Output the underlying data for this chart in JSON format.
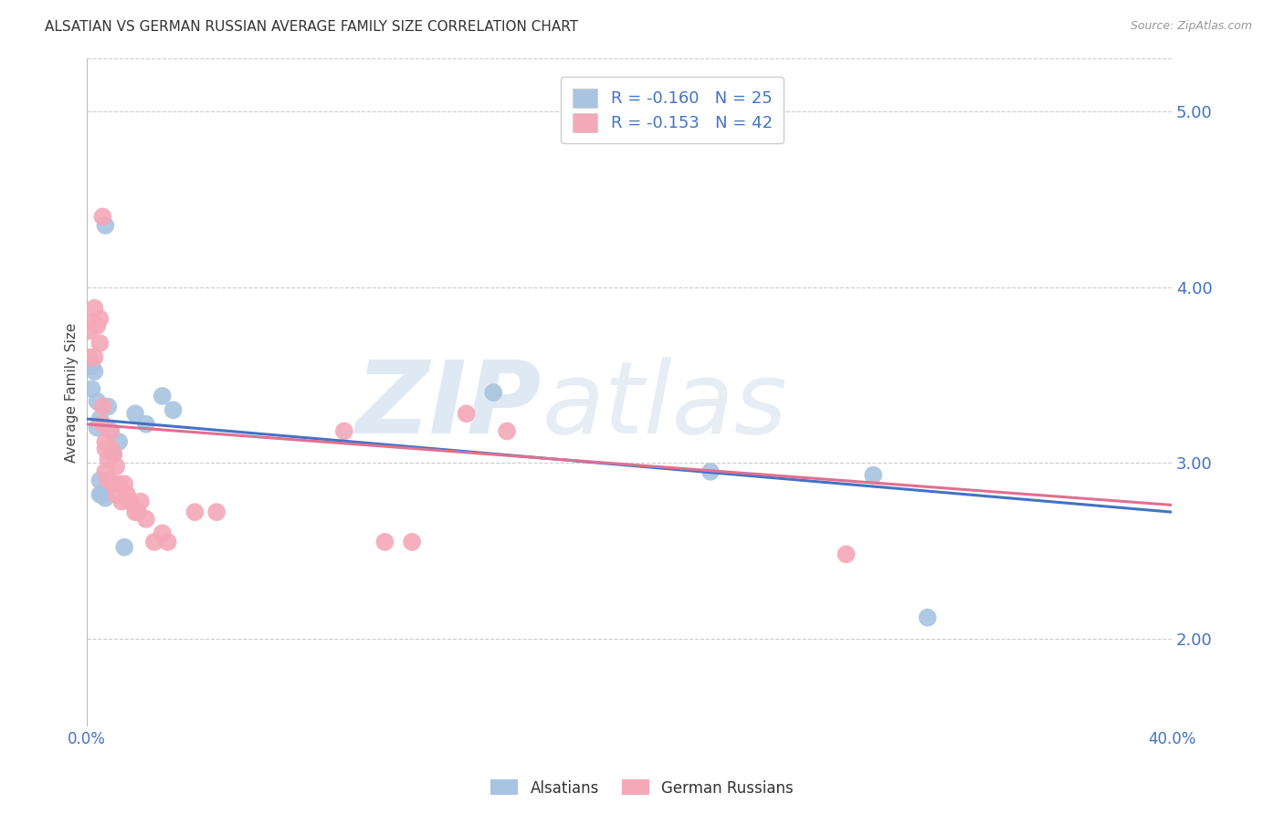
{
  "title": "ALSATIAN VS GERMAN RUSSIAN AVERAGE FAMILY SIZE CORRELATION CHART",
  "source": "Source: ZipAtlas.com",
  "ylabel": "Average Family Size",
  "watermark": "ZIPatlas",
  "right_yticks": [
    2.0,
    3.0,
    4.0,
    5.0
  ],
  "xmin": 0.0,
  "xmax": 0.4,
  "ymin": 1.5,
  "ymax": 5.3,
  "alsatian_color": "#a8c4e0",
  "german_russian_color": "#f4a8b8",
  "alsatian_line_color": "#4472c4",
  "german_russian_line_color": "#e07090",
  "legend_text_color": "#4472c4",
  "alsatian_R": -0.16,
  "alsatian_N": 25,
  "german_russian_R": -0.153,
  "german_russian_N": 42,
  "alsatian_points": [
    [
      0.001,
      3.55
    ],
    [
      0.002,
      3.42
    ],
    [
      0.002,
      3.55
    ],
    [
      0.003,
      3.52
    ],
    [
      0.004,
      3.35
    ],
    [
      0.004,
      3.2
    ],
    [
      0.005,
      3.25
    ],
    [
      0.005,
      2.9
    ],
    [
      0.005,
      2.82
    ],
    [
      0.006,
      2.82
    ],
    [
      0.007,
      2.8
    ],
    [
      0.007,
      4.35
    ],
    [
      0.008,
      3.32
    ],
    [
      0.009,
      3.18
    ],
    [
      0.01,
      3.05
    ],
    [
      0.012,
      3.12
    ],
    [
      0.014,
      2.52
    ],
    [
      0.018,
      3.28
    ],
    [
      0.022,
      3.22
    ],
    [
      0.028,
      3.38
    ],
    [
      0.032,
      3.3
    ],
    [
      0.15,
      3.4
    ],
    [
      0.23,
      2.95
    ],
    [
      0.29,
      2.93
    ],
    [
      0.31,
      2.12
    ]
  ],
  "german_russian_points": [
    [
      0.001,
      3.6
    ],
    [
      0.001,
      3.75
    ],
    [
      0.002,
      3.8
    ],
    [
      0.003,
      3.6
    ],
    [
      0.003,
      3.88
    ],
    [
      0.004,
      3.78
    ],
    [
      0.005,
      3.68
    ],
    [
      0.005,
      3.82
    ],
    [
      0.006,
      4.4
    ],
    [
      0.006,
      3.32
    ],
    [
      0.006,
      3.22
    ],
    [
      0.007,
      3.12
    ],
    [
      0.007,
      3.08
    ],
    [
      0.007,
      2.95
    ],
    [
      0.008,
      2.9
    ],
    [
      0.008,
      3.02
    ],
    [
      0.009,
      3.18
    ],
    [
      0.009,
      3.08
    ],
    [
      0.01,
      3.05
    ],
    [
      0.01,
      2.88
    ],
    [
      0.011,
      2.98
    ],
    [
      0.011,
      2.82
    ],
    [
      0.012,
      2.88
    ],
    [
      0.013,
      2.78
    ],
    [
      0.014,
      2.88
    ],
    [
      0.015,
      2.82
    ],
    [
      0.016,
      2.78
    ],
    [
      0.018,
      2.72
    ],
    [
      0.019,
      2.72
    ],
    [
      0.02,
      2.78
    ],
    [
      0.022,
      2.68
    ],
    [
      0.025,
      2.55
    ],
    [
      0.028,
      2.6
    ],
    [
      0.03,
      2.55
    ],
    [
      0.04,
      2.72
    ],
    [
      0.048,
      2.72
    ],
    [
      0.095,
      3.18
    ],
    [
      0.11,
      2.55
    ],
    [
      0.12,
      2.55
    ],
    [
      0.14,
      3.28
    ],
    [
      0.155,
      3.18
    ],
    [
      0.28,
      2.48
    ]
  ],
  "background_color": "#ffffff",
  "grid_color": "#cccccc",
  "tick_color": "#4472c4"
}
